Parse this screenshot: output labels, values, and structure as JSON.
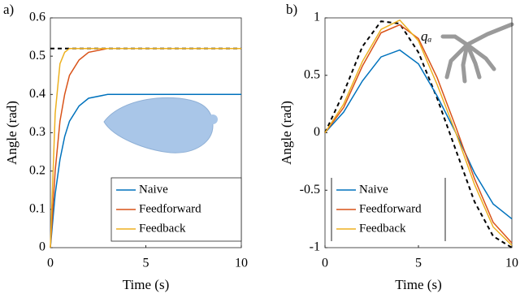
{
  "chart_data": [
    {
      "type": "line",
      "panel_label": "a)",
      "xlabel": "Time (s)",
      "ylabel": "Angle (rad)",
      "xlim": [
        0,
        10
      ],
      "ylim": [
        0,
        0.6
      ],
      "xticks": [
        0,
        5,
        10
      ],
      "yticks": [
        0,
        0.1,
        0.2,
        0.3,
        0.4,
        0.5,
        0.6
      ],
      "legend": "lower right",
      "x": [
        0,
        0.25,
        0.5,
        0.75,
        1,
        1.5,
        2,
        3,
        4,
        5,
        6,
        8,
        10
      ],
      "series": [
        {
          "color": "#000000",
          "dashed": true,
          "values": [
            0.52,
            0.52,
            0.52,
            0.52,
            0.52,
            0.52,
            0.52,
            0.52,
            0.52,
            0.52,
            0.52,
            0.52,
            0.52
          ]
        },
        {
          "name": "Naive",
          "color": "#0072bd",
          "values": [
            0,
            0.14,
            0.23,
            0.29,
            0.33,
            0.37,
            0.39,
            0.4,
            0.4,
            0.4,
            0.4,
            0.4,
            0.4
          ]
        },
        {
          "name": "Feedforward",
          "color": "#d95319",
          "values": [
            0,
            0.2,
            0.33,
            0.4,
            0.45,
            0.49,
            0.51,
            0.52,
            0.52,
            0.52,
            0.52,
            0.52,
            0.52
          ]
        },
        {
          "name": "Feedback",
          "color": "#edb120",
          "values": [
            0,
            0.35,
            0.48,
            0.51,
            0.52,
            0.52,
            0.52,
            0.52,
            0.52,
            0.52,
            0.52,
            0.52,
            0.52
          ]
        }
      ]
    },
    {
      "type": "line",
      "panel_label": "b)",
      "xlabel": "Time (s)",
      "ylabel": "Angle (rad)",
      "annotation": "qₐ",
      "xlim": [
        0,
        10
      ],
      "ylim": [
        -1,
        1
      ],
      "xticks": [
        0,
        5,
        10
      ],
      "yticks": [
        -1,
        -0.5,
        0,
        0.5,
        1
      ],
      "legend": "lower left",
      "x": [
        0,
        1,
        2,
        3,
        4,
        5,
        6,
        7,
        8,
        9,
        10
      ],
      "series": [
        {
          "color": "#000000",
          "dashed": true,
          "values": [
            0,
            0.35,
            0.75,
            0.97,
            0.95,
            0.7,
            0.3,
            -0.15,
            -0.6,
            -0.9,
            -1
          ]
        },
        {
          "name": "Naive",
          "color": "#0072bd",
          "values": [
            0,
            0.18,
            0.45,
            0.66,
            0.72,
            0.6,
            0.32,
            0,
            -0.35,
            -0.62,
            -0.75
          ]
        },
        {
          "name": "Feedforward",
          "color": "#d95319",
          "values": [
            0,
            0.22,
            0.58,
            0.87,
            0.94,
            0.82,
            0.48,
            0.05,
            -0.4,
            -0.78,
            -0.96
          ]
        },
        {
          "name": "Feedback",
          "color": "#edb120",
          "values": [
            0,
            0.25,
            0.62,
            0.9,
            0.98,
            0.8,
            0.42,
            0,
            -0.45,
            -0.82,
            -0.98
          ]
        }
      ]
    }
  ]
}
